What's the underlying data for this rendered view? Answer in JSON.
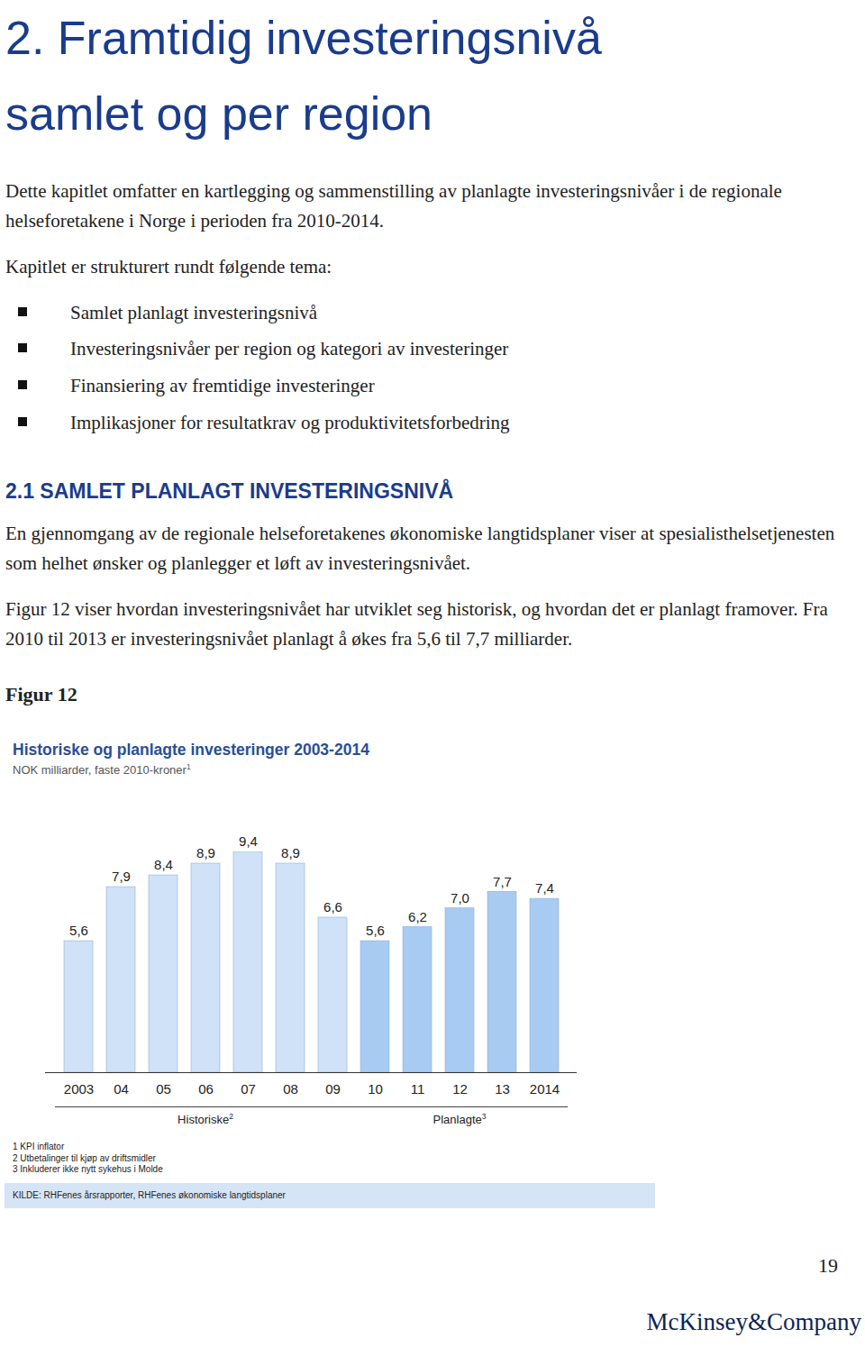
{
  "document": {
    "heading": [
      "2. Framtidig investeringsnivå",
      "samlet og per region"
    ],
    "intro": [
      "Dette kapitlet omfatter en kartlegging og sammenstilling av planlagte investeringsnivåer i de regionale helseforetakene i Norge i perioden fra 2010-2014.",
      "Kapitlet er strukturert rundt følgende tema:"
    ],
    "bullets": [
      "Samlet planlagt investeringsnivå",
      "Investeringsnivåer per region og kategori av investeringer",
      "Finansiering av fremtidige investeringer",
      "Implikasjoner for resultatkrav og produktivitetsforbedring"
    ],
    "section_heading": "2.1 SAMLET PLANLAGT INVESTERINGSNIVÅ",
    "section_paragraphs": [
      "En gjennomgang av de regionale helseforetakenes økonomiske langtidsplaner viser at spesialisthelsetjenesten som helhet ønsker og planlegger et løft av investeringsnivået.",
      "Figur 12 viser hvordan investeringsnivået har utviklet seg historisk, og hvordan det er planlagt framover. Fra 2010 til 2013 er investeringsnivået planlagt å økes fra 5,6 til 7,7 milliarder."
    ],
    "figure_label": "Figur 12",
    "footnotes": [
      "1 KPI inflator",
      "2 Utbetalinger til kjøp av driftsmidler",
      "3 Inkluderer ikke nytt sykehus i Molde"
    ],
    "source": "KILDE: RHFenes årsrapporter, RHFenes økonomiske langtidsplaner",
    "page_number": "19",
    "logo": "McKinsey&Company"
  },
  "chart_data": {
    "type": "bar",
    "title": "Historiske og planlagte investeringer 2003-2014",
    "subtitle": {
      "text": "NOK milliarder, faste 2010-kroner",
      "footnote": "1"
    },
    "categories": [
      "2003",
      "04",
      "05",
      "06",
      "07",
      "08",
      "09",
      "10",
      "11",
      "12",
      "13",
      "2014"
    ],
    "values": [
      5.6,
      7.9,
      8.4,
      8.9,
      9.4,
      8.9,
      6.6,
      5.6,
      6.2,
      7.0,
      7.7,
      7.4
    ],
    "value_labels": [
      "5,6",
      "7,9",
      "8,4",
      "8,9",
      "9,4",
      "8,9",
      "6,6",
      "5,6",
      "6,2",
      "7,0",
      "7,7",
      "7,4"
    ],
    "colors": [
      "#cfe2f8",
      "#cfe2f8",
      "#cfe2f8",
      "#cfe2f8",
      "#cfe2f8",
      "#cfe2f8",
      "#cfe2f8",
      "#a8cbf2",
      "#a8cbf2",
      "#a8cbf2",
      "#a8cbf2",
      "#a8cbf2"
    ],
    "groups": [
      {
        "label": "Historiske",
        "footnote": "2",
        "from": "2003",
        "to": "09"
      },
      {
        "label": "Planlagte",
        "footnote": "3",
        "from": "10",
        "to": "2014"
      }
    ],
    "ylim": [
      0,
      9.4
    ],
    "yticks": [],
    "grid": false,
    "data_labels": true,
    "tick_labels": "x"
  }
}
